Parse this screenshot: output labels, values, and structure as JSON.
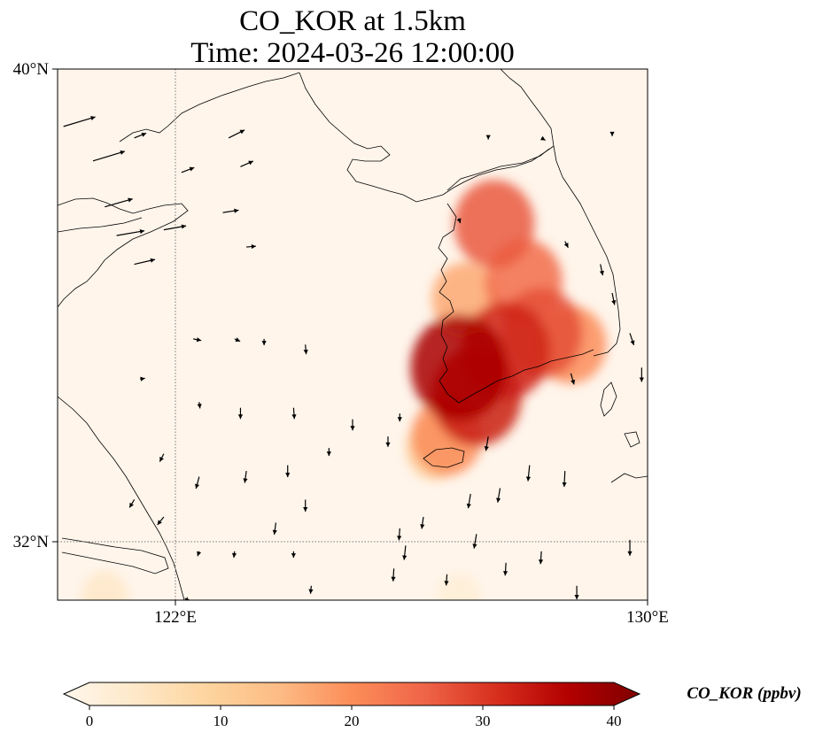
{
  "title_line1": "CO_KOR at 1.5km",
  "title_line2": "Time: 2024-03-26 12:00:00",
  "map": {
    "lon_range": [
      120.0,
      130.0
    ],
    "lat_range": [
      30.75,
      40.0
    ],
    "lat_ticks": [
      {
        "value": 40,
        "label": "40°N"
      },
      {
        "value": 32,
        "label": "32°N"
      }
    ],
    "lon_ticks": [
      {
        "value": 122,
        "label": "122°E"
      },
      {
        "value": 130,
        "label": "130°E"
      }
    ],
    "gridlines": {
      "lon": [
        122
      ],
      "lat": [
        32
      ]
    },
    "background_color": "#fff5eb"
  },
  "colorbar": {
    "label": "CO_KOR (ppbv)",
    "min": 0,
    "max": 40,
    "ticks": [
      0,
      10,
      20,
      30,
      40
    ],
    "colormap": "OrRd",
    "extend": "both",
    "stops": [
      "#fff7ec",
      "#fee8c8",
      "#fdd49e",
      "#fdbb84",
      "#fc8d59",
      "#ef6548",
      "#d7301f",
      "#b30000",
      "#7f0000"
    ]
  },
  "chart_data": {
    "type": "heatmap",
    "variable": "CO_KOR",
    "unit": "ppbv",
    "field_hotspots": [
      {
        "lon": 127.4,
        "lat": 37.3,
        "value": 26
      },
      {
        "lon": 127.9,
        "lat": 36.3,
        "value": 24
      },
      {
        "lon": 126.9,
        "lat": 36.0,
        "value": 17
      },
      {
        "lon": 126.8,
        "lat": 34.8,
        "value": 36
      },
      {
        "lon": 127.1,
        "lat": 34.3,
        "value": 32
      },
      {
        "lon": 127.6,
        "lat": 35.1,
        "value": 31
      },
      {
        "lon": 128.2,
        "lat": 35.4,
        "value": 27
      },
      {
        "lon": 128.7,
        "lat": 35.2,
        "value": 20
      },
      {
        "lon": 126.6,
        "lat": 33.6,
        "value": 20
      },
      {
        "lon": 126.4,
        "lat": 33.4,
        "value": 12
      },
      {
        "lon": 120.8,
        "lat": 30.8,
        "value": 5
      },
      {
        "lon": 126.8,
        "lat": 30.8,
        "value": 3
      }
    ],
    "wind_vectors": [
      {
        "lon": 120.1,
        "lat": 39.0,
        "u": 4,
        "v": 1.2
      },
      {
        "lon": 120.6,
        "lat": 38.4,
        "u": 4,
        "v": 1.2
      },
      {
        "lon": 120.8,
        "lat": 37.6,
        "u": 3.5,
        "v": 1.0
      },
      {
        "lon": 121.3,
        "lat": 38.8,
        "u": 1.5,
        "v": 0.6
      },
      {
        "lon": 121.0,
        "lat": 37.1,
        "u": 3.5,
        "v": 0.6
      },
      {
        "lon": 121.3,
        "lat": 36.6,
        "u": 2.6,
        "v": 0.6
      },
      {
        "lon": 121.8,
        "lat": 37.2,
        "u": 2.8,
        "v": 0.5
      },
      {
        "lon": 122.1,
        "lat": 38.2,
        "u": 1.6,
        "v": 0.6
      },
      {
        "lon": 122.8,
        "lat": 37.5,
        "u": 2.0,
        "v": 0.3
      },
      {
        "lon": 123.1,
        "lat": 38.3,
        "u": 1.6,
        "v": 0.7
      },
      {
        "lon": 122.9,
        "lat": 38.8,
        "u": 2.0,
        "v": 1.0
      },
      {
        "lon": 123.2,
        "lat": 36.9,
        "u": 1.2,
        "v": 0.1
      },
      {
        "lon": 122.3,
        "lat": 35.3,
        "u": 1.0,
        "v": -0.2
      },
      {
        "lon": 123.0,
        "lat": 35.3,
        "u": 0.7,
        "v": -0.3
      },
      {
        "lon": 123.5,
        "lat": 35.3,
        "u": 0.0,
        "v": -0.8
      },
      {
        "lon": 124.2,
        "lat": 35.2,
        "u": 0.1,
        "v": -1.2
      },
      {
        "lon": 121.4,
        "lat": 34.6,
        "u": 0.6,
        "v": 0.1
      },
      {
        "lon": 123.1,
        "lat": 34.1,
        "u": 0.0,
        "v": -1.4
      },
      {
        "lon": 122.4,
        "lat": 34.2,
        "u": 0.1,
        "v": -0.8
      },
      {
        "lon": 124.0,
        "lat": 34.1,
        "u": 0.1,
        "v": -1.4
      },
      {
        "lon": 125.0,
        "lat": 33.9,
        "u": 0.0,
        "v": -1.4
      },
      {
        "lon": 125.6,
        "lat": 33.6,
        "u": 0.0,
        "v": -1.3
      },
      {
        "lon": 125.8,
        "lat": 34.0,
        "u": 0.0,
        "v": -1.0
      },
      {
        "lon": 124.6,
        "lat": 33.4,
        "u": 0.0,
        "v": -1.0
      },
      {
        "lon": 121.8,
        "lat": 33.3,
        "u": -0.5,
        "v": -1.0
      },
      {
        "lon": 122.4,
        "lat": 32.9,
        "u": -0.4,
        "v": -1.5
      },
      {
        "lon": 123.2,
        "lat": 33.0,
        "u": -0.2,
        "v": -1.5
      },
      {
        "lon": 123.9,
        "lat": 33.1,
        "u": 0.0,
        "v": -1.5
      },
      {
        "lon": 124.2,
        "lat": 32.5,
        "u": 0.0,
        "v": -1.5
      },
      {
        "lon": 121.3,
        "lat": 32.5,
        "u": -0.6,
        "v": -1.0
      },
      {
        "lon": 121.8,
        "lat": 32.2,
        "u": -0.8,
        "v": -1.0
      },
      {
        "lon": 123.7,
        "lat": 32.1,
        "u": -0.2,
        "v": -1.5
      },
      {
        "lon": 125.8,
        "lat": 32.0,
        "u": -0.1,
        "v": -1.5
      },
      {
        "lon": 126.2,
        "lat": 32.2,
        "u": -0.2,
        "v": -1.5
      },
      {
        "lon": 127.1,
        "lat": 31.9,
        "u": -0.3,
        "v": -1.8
      },
      {
        "lon": 127.5,
        "lat": 32.7,
        "u": -0.3,
        "v": -1.8
      },
      {
        "lon": 128.0,
        "lat": 33.1,
        "u": -0.2,
        "v": -2.0
      },
      {
        "lon": 128.6,
        "lat": 33.0,
        "u": -0.1,
        "v": -2.0
      },
      {
        "lon": 127.3,
        "lat": 33.6,
        "u": -0.3,
        "v": -1.8
      },
      {
        "lon": 127.0,
        "lat": 32.6,
        "u": -0.3,
        "v": -1.8
      },
      {
        "lon": 125.9,
        "lat": 31.7,
        "u": -0.2,
        "v": -1.8
      },
      {
        "lon": 122.4,
        "lat": 31.6,
        "u": -0.2,
        "v": -0.6
      },
      {
        "lon": 123.0,
        "lat": 31.6,
        "u": -0.1,
        "v": -0.8
      },
      {
        "lon": 124.0,
        "lat": 31.6,
        "u": 0.0,
        "v": -0.8
      },
      {
        "lon": 125.7,
        "lat": 31.3,
        "u": -0.1,
        "v": -1.6
      },
      {
        "lon": 126.6,
        "lat": 31.2,
        "u": -0.1,
        "v": -1.4
      },
      {
        "lon": 127.6,
        "lat": 31.4,
        "u": -0.1,
        "v": -1.6
      },
      {
        "lon": 128.2,
        "lat": 31.6,
        "u": -0.1,
        "v": -1.6
      },
      {
        "lon": 129.7,
        "lat": 31.8,
        "u": 0.0,
        "v": -2.0
      },
      {
        "lon": 122.2,
        "lat": 30.8,
        "u": -0.2,
        "v": -0.7
      },
      {
        "lon": 124.3,
        "lat": 31.0,
        "u": -0.1,
        "v": -1.0
      },
      {
        "lon": 128.8,
        "lat": 31.0,
        "u": 0.0,
        "v": -1.7
      },
      {
        "lon": 127.3,
        "lat": 38.8,
        "u": 0.0,
        "v": -0.2
      },
      {
        "lon": 128.2,
        "lat": 38.8,
        "u": 0.5,
        "v": -0.3
      },
      {
        "lon": 129.4,
        "lat": 38.9,
        "u": 0.0,
        "v": -0.5
      },
      {
        "lon": 128.6,
        "lat": 37.0,
        "u": 0.4,
        "v": -0.8
      },
      {
        "lon": 129.2,
        "lat": 36.6,
        "u": 0.3,
        "v": -1.4
      },
      {
        "lon": 129.4,
        "lat": 36.1,
        "u": 0.3,
        "v": -1.5
      },
      {
        "lon": 129.7,
        "lat": 35.4,
        "u": 0.5,
        "v": -1.5
      },
      {
        "lon": 129.9,
        "lat": 34.8,
        "u": 0.0,
        "v": -1.8
      },
      {
        "lon": 128.7,
        "lat": 34.7,
        "u": 0.4,
        "v": -1.4
      },
      {
        "lon": 126.8,
        "lat": 37.4,
        "u": 0.2,
        "v": -0.6
      },
      {
        "lon": 128.3,
        "lat": 37.4,
        "u": 0.0,
        "v": 0.0
      }
    ]
  }
}
